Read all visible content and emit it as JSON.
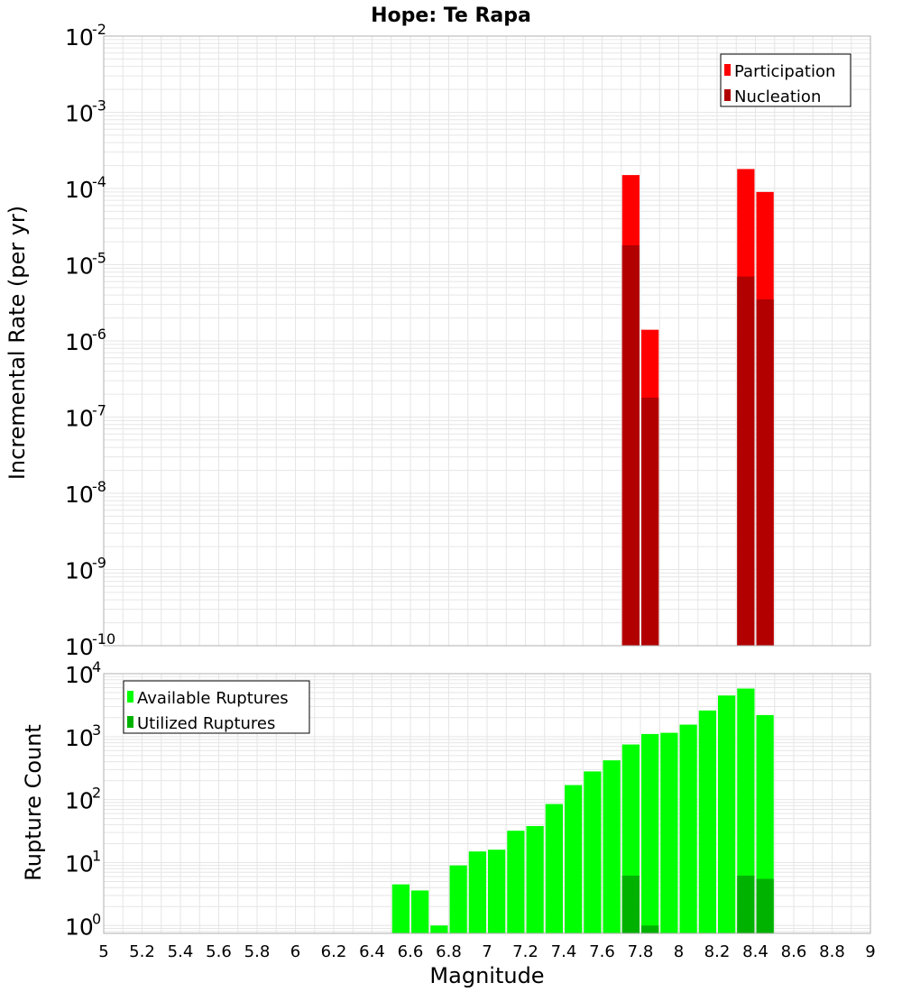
{
  "title": "Hope: Te Rapa",
  "colors": {
    "participation": "#ff0000",
    "nucleation": "#b20000",
    "available": "#00ff00",
    "utilized": "#00b200",
    "grid": "#e6e6e6",
    "frame": "#b0b0b0"
  },
  "chart_data": [
    {
      "type": "bar",
      "scale": "log",
      "ylabel": "Incremental Rate (per yr)",
      "ylim": [
        1e-10,
        0.01
      ],
      "y_ticks": [
        {
          "base": "10",
          "exp": "-2"
        },
        {
          "base": "10",
          "exp": "-3"
        },
        {
          "base": "10",
          "exp": "-4"
        },
        {
          "base": "10",
          "exp": "-5"
        },
        {
          "base": "10",
          "exp": "-6"
        },
        {
          "base": "10",
          "exp": "-7"
        },
        {
          "base": "10",
          "exp": "-8"
        },
        {
          "base": "10",
          "exp": "-9"
        },
        {
          "base": "10",
          "exp": "-10"
        }
      ],
      "bin_width": 0.1,
      "legend_position": "top-right",
      "series": [
        {
          "name": "Participation",
          "x": [
            7.75,
            7.85,
            8.35,
            8.45
          ],
          "values": [
            0.00015,
            1.4e-06,
            0.00018,
            9e-05
          ]
        },
        {
          "name": "Nucleation",
          "x": [
            7.75,
            7.85,
            8.35,
            8.45
          ],
          "values": [
            1.8e-05,
            1.8e-07,
            7e-06,
            3.5e-06
          ]
        }
      ]
    },
    {
      "type": "bar",
      "scale": "log",
      "ylabel": "Rupture Count",
      "xlabel": "Magnitude",
      "ylim": [
        0.75,
        10000
      ],
      "y_ticks": [
        {
          "base": "10",
          "exp": "4"
        },
        {
          "base": "10",
          "exp": "3"
        },
        {
          "base": "10",
          "exp": "2"
        },
        {
          "base": "10",
          "exp": "1"
        },
        {
          "base": "10",
          "exp": "0"
        }
      ],
      "xlim": [
        5,
        9
      ],
      "x_ticks": [
        "5",
        "5.2",
        "5.4",
        "5.6",
        "5.8",
        "6",
        "6.2",
        "6.4",
        "6.6",
        "6.8",
        "7",
        "7.2",
        "7.4",
        "7.6",
        "7.8",
        "8",
        "8.2",
        "8.4",
        "8.6",
        "8.8",
        "9"
      ],
      "bin_width": 0.1,
      "legend_position": "top-left",
      "series": [
        {
          "name": "Available Ruptures",
          "x": [
            6.55,
            6.65,
            6.75,
            6.85,
            6.95,
            7.05,
            7.15,
            7.25,
            7.35,
            7.45,
            7.55,
            7.65,
            7.75,
            7.85,
            7.95,
            8.05,
            8.15,
            8.25,
            8.35,
            8.45
          ],
          "values": [
            4.5,
            3.6,
            1,
            9,
            15,
            16,
            32,
            38,
            85,
            170,
            280,
            420,
            750,
            1100,
            1150,
            1550,
            2600,
            4500,
            5800,
            2200
          ]
        },
        {
          "name": "Utilized Ruptures",
          "x": [
            7.75,
            7.85,
            8.35,
            8.45
          ],
          "values": [
            6.2,
            1,
            6.2,
            5.5
          ]
        }
      ]
    }
  ]
}
